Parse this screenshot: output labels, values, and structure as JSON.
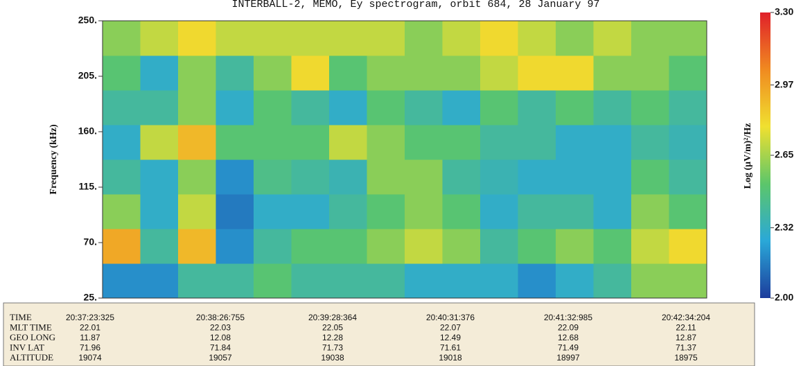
{
  "chart_data": {
    "type": "heatmap",
    "title": "INTERBALL-2, MEMO, Ey spectrogram, orbit 684, 28 January 97",
    "ylabel": "Frequency (kHz)",
    "ylim": [
      25,
      250
    ],
    "yticks": [
      {
        "value": 250,
        "label": "250."
      },
      {
        "value": 205,
        "label": "205."
      },
      {
        "value": 160,
        "label": "160."
      },
      {
        "value": 115,
        "label": "115."
      },
      {
        "value": 70,
        "label": "70."
      },
      {
        "value": 25,
        "label": "25."
      }
    ],
    "ybins": [
      25,
      53.125,
      81.25,
      109.375,
      137.5,
      165.625,
      193.75,
      221.875,
      250
    ],
    "values": [
      [
        2.2,
        2.95,
        2.6,
        2.4,
        2.3,
        2.4,
        2.5,
        2.6
      ],
      [
        2.2,
        2.4,
        2.3,
        2.3,
        2.7,
        2.4,
        2.3,
        2.7
      ],
      [
        2.4,
        2.9,
        2.7,
        2.6,
        2.9,
        2.6,
        2.6,
        2.8
      ],
      [
        2.4,
        2.2,
        2.15,
        2.2,
        2.5,
        2.3,
        2.4,
        2.7
      ],
      [
        2.5,
        2.4,
        2.3,
        2.45,
        2.5,
        2.5,
        2.6,
        2.7
      ],
      [
        2.4,
        2.5,
        2.3,
        2.4,
        2.5,
        2.4,
        2.8,
        2.7
      ],
      [
        2.4,
        2.5,
        2.4,
        2.35,
        2.7,
        2.3,
        2.5,
        2.7
      ],
      [
        2.4,
        2.6,
        2.5,
        2.6,
        2.6,
        2.5,
        2.6,
        2.7
      ],
      [
        2.3,
        2.7,
        2.6,
        2.6,
        2.5,
        2.4,
        2.6,
        2.6
      ],
      [
        2.3,
        2.6,
        2.5,
        2.4,
        2.5,
        2.3,
        2.6,
        2.7
      ],
      [
        2.3,
        2.4,
        2.3,
        2.35,
        2.4,
        2.5,
        2.7,
        2.8
      ],
      [
        2.2,
        2.5,
        2.4,
        2.3,
        2.4,
        2.4,
        2.8,
        2.7
      ],
      [
        2.3,
        2.6,
        2.4,
        2.3,
        2.3,
        2.5,
        2.8,
        2.6
      ],
      [
        2.4,
        2.5,
        2.3,
        2.3,
        2.3,
        2.4,
        2.6,
        2.7
      ],
      [
        2.6,
        2.7,
        2.6,
        2.5,
        2.4,
        2.5,
        2.6,
        2.6
      ],
      [
        2.6,
        2.8,
        2.5,
        2.4,
        2.35,
        2.4,
        2.5,
        2.6
      ]
    ],
    "colorscale": [
      "#1c3c9c",
      "#2aa8d8",
      "#5cc66a",
      "#f0e030",
      "#f08a20",
      "#e0202a"
    ],
    "zlabel": "Log (μV/m)²/Hz",
    "zlim": [
      2.0,
      3.3
    ],
    "zticks": [
      {
        "value": 3.3,
        "label": "3.30"
      },
      2.97,
      2.65,
      2.32,
      {
        "value": 2,
        "label": "2.00"
      }
    ],
    "ephemeris": {
      "row_labels": [
        "TIME",
        "MLT TIME",
        "GEO LONG",
        "INV LAT",
        "ALTITUDE"
      ],
      "columns": [
        [
          "20:37:23:325",
          22.01,
          11.87,
          71.96,
          19074
        ],
        [
          "20:38:26:755",
          22.03,
          12.08,
          71.84,
          19057
        ],
        [
          "20:39:28:364",
          22.05,
          12.28,
          71.73,
          19038
        ],
        [
          "20:40:31:376",
          22.07,
          12.49,
          71.61,
          19018
        ],
        [
          "20:41:32:985",
          22.09,
          12.68,
          71.49,
          18997
        ],
        [
          "20:42:34:204",
          22.11,
          12.87,
          71.37,
          18975
        ]
      ]
    }
  }
}
